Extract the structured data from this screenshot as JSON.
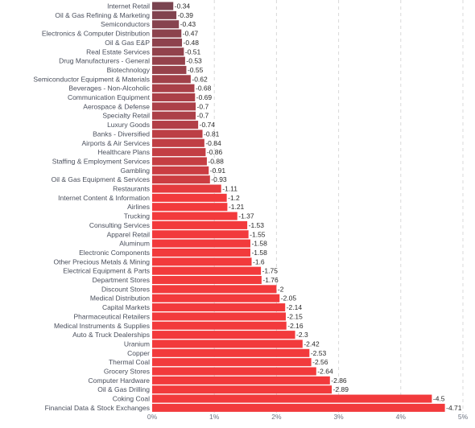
{
  "chart_data": {
    "type": "bar",
    "orientation": "horizontal",
    "categories": [
      "Internet Retail",
      "Oil & Gas Refining & Marketing",
      "Semiconductors",
      "Electronics & Computer Distribution",
      "Oil & Gas E&P",
      "Real Estate Services",
      "Drug Manufacturers - General",
      "Biotechnology",
      "Semiconductor Equipment & Materials",
      "Beverages - Non-Alcoholic",
      "Communication Equipment",
      "Aerospace & Defense",
      "Specialty Retail",
      "Luxury Goods",
      "Banks - Diversified",
      "Airports & Air Services",
      "Healthcare Plans",
      "Staffing & Employment Services",
      "Gambling",
      "Oil & Gas Equipment & Services",
      "Restaurants",
      "Internet Content & Information",
      "Airlines",
      "Trucking",
      "Consulting Services",
      "Apparel Retail",
      "Aluminum",
      "Electronic Components",
      "Other Precious Metals & Mining",
      "Electrical Equipment & Parts",
      "Department Stores",
      "Discount Stores",
      "Medical Distribution",
      "Capital Markets",
      "Pharmaceutical Retailers",
      "Medical Instruments & Supplies",
      "Auto & Truck Dealerships",
      "Uranium",
      "Copper",
      "Thermal Coal",
      "Grocery Stores",
      "Computer Hardware",
      "Oil & Gas Drilling",
      "Coking Coal",
      "Financial Data & Stock Exchanges"
    ],
    "values": [
      -0.34,
      -0.39,
      -0.43,
      -0.47,
      -0.48,
      -0.51,
      -0.53,
      -0.55,
      -0.62,
      -0.68,
      -0.69,
      -0.7,
      -0.7,
      -0.74,
      -0.81,
      -0.84,
      -0.86,
      -0.88,
      -0.91,
      -0.93,
      -1.11,
      -1.2,
      -1.21,
      -1.37,
      -1.53,
      -1.55,
      -1.58,
      -1.58,
      -1.6,
      -1.75,
      -1.76,
      -2,
      -2.05,
      -2.14,
      -2.15,
      -2.16,
      -2.3,
      -2.42,
      -2.53,
      -2.56,
      -2.64,
      -2.86,
      -2.89,
      -4.5,
      -4.71
    ],
    "value_labels": [
      "-0.34",
      "-0.39",
      "-0.43",
      "-0.47",
      "-0.48",
      "-0.51",
      "-0.53",
      "-0.55",
      "-0.62",
      "-0.68",
      "-0.69",
      "-0.7",
      "-0.7",
      "-0.74",
      "-0.81",
      "-0.84",
      "-0.86",
      "-0.88",
      "-0.91",
      "-0.93",
      "-1.11",
      "-1.2",
      "-1.21",
      "-1.37",
      "-1.53",
      "-1.55",
      "-1.58",
      "-1.58",
      "-1.6",
      "-1.75",
      "-1.76",
      "-2",
      "-2.05",
      "-2.14",
      "-2.15",
      "-2.16",
      "-2.3",
      "-2.42",
      "-2.53",
      "-2.56",
      "-2.64",
      "-2.86",
      "-2.89",
      "-4.5",
      "-4.71"
    ],
    "x_ticks": [
      0,
      1,
      2,
      3,
      4,
      5
    ],
    "x_tick_labels": [
      "0%",
      "1%",
      "2%",
      "3%",
      "4%",
      "5%"
    ],
    "xlim": [
      0,
      5
    ],
    "bar_magnitude": "absolute",
    "grid": true,
    "grid_style": "dashed-vertical",
    "legend": "none",
    "title": "",
    "xlabel": "",
    "ylabel": "",
    "colors": {
      "dark": "#7a4450",
      "bright": "#f23a3c",
      "grid": "#d9d9d9",
      "label": "#4a4f5c"
    }
  }
}
